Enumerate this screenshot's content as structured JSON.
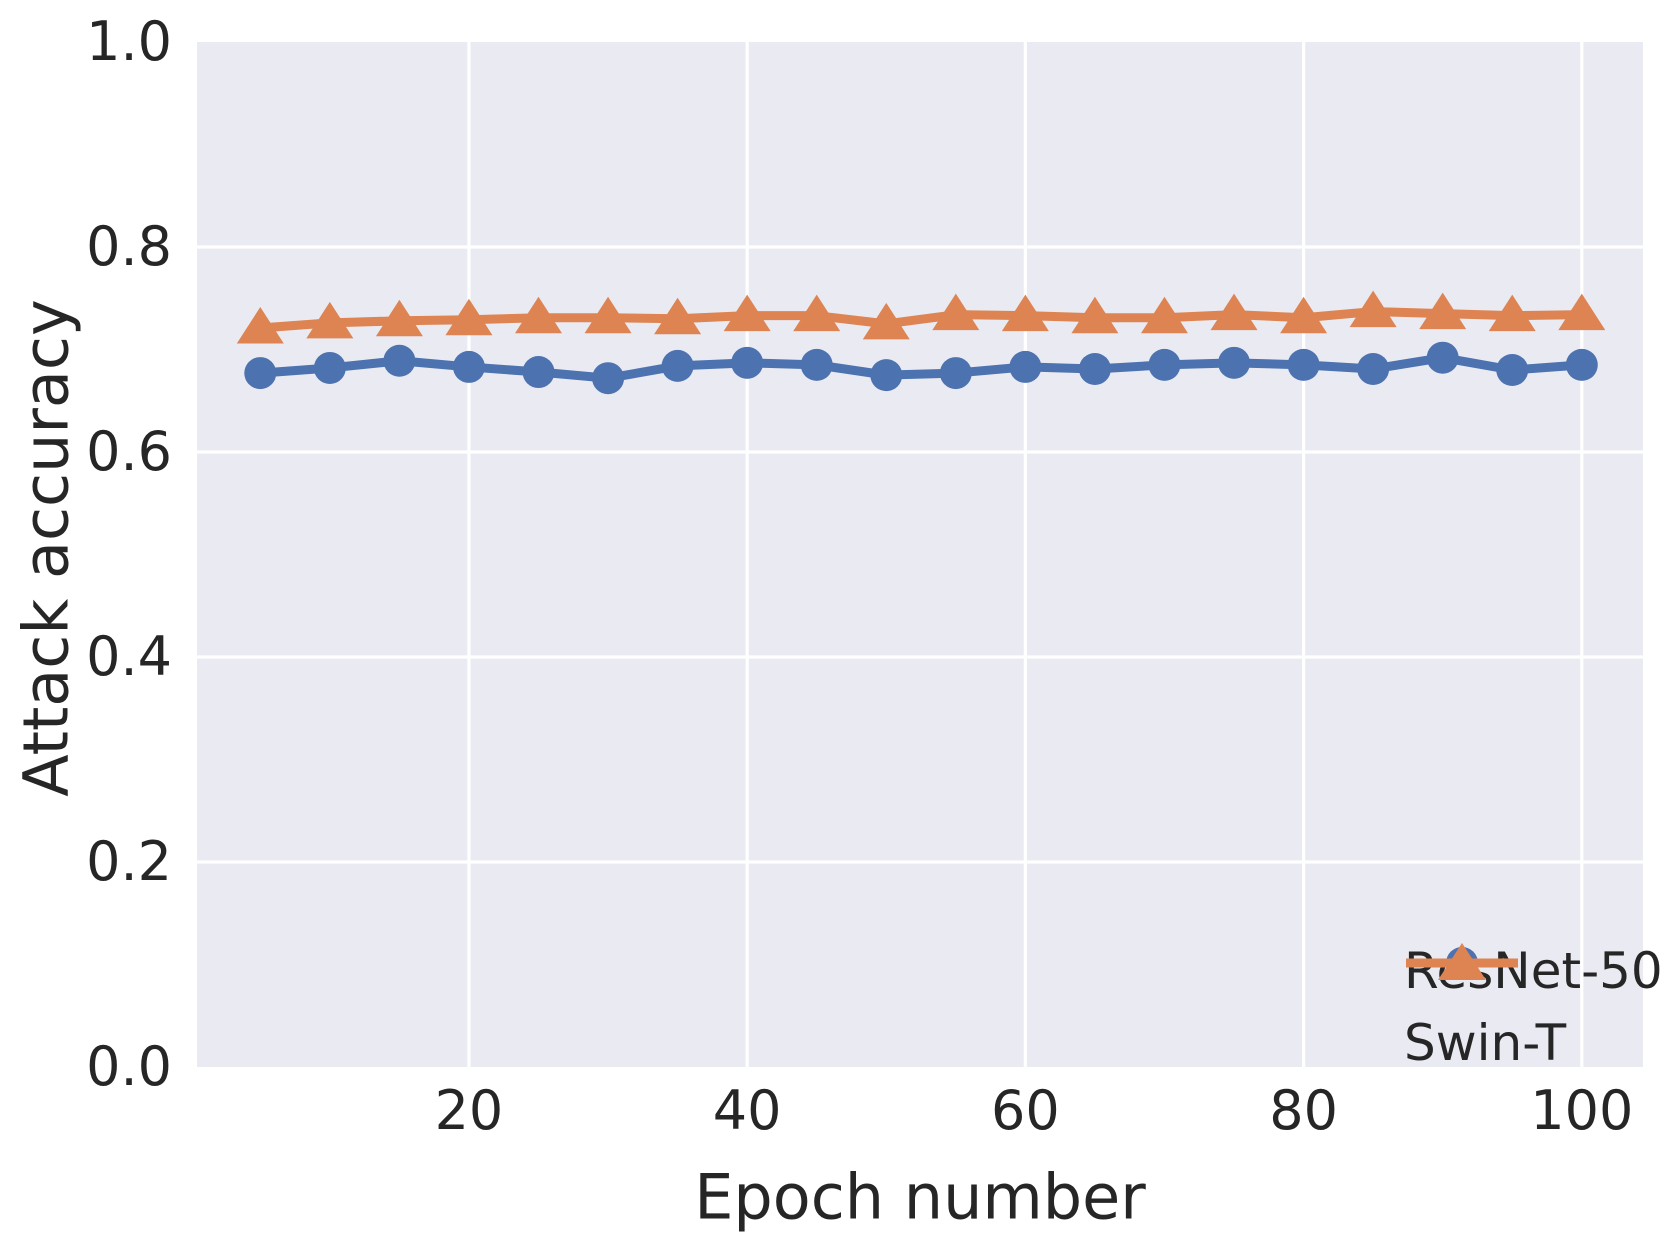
{
  "figure": {
    "background": "#ffffff",
    "plot_background": "#eaeaf2",
    "grid_color": "#ffffff",
    "text_color": "#262626"
  },
  "chart_data": {
    "type": "line",
    "title": "",
    "xlabel": "Epoch number",
    "ylabel": "Attack accuracy",
    "xlim": [
      0.45,
      104.4
    ],
    "ylim": [
      0.0,
      1.0
    ],
    "x_ticks": [
      20,
      40,
      60,
      80,
      100
    ],
    "y_ticks": [
      "0.0",
      "0.2",
      "0.4",
      "0.6",
      "0.8",
      "1.0"
    ],
    "grid": true,
    "legend_position": "lower right",
    "x": [
      5,
      10,
      15,
      20,
      25,
      30,
      35,
      40,
      45,
      50,
      55,
      60,
      65,
      70,
      75,
      80,
      85,
      90,
      95,
      100
    ],
    "series": [
      {
        "name": "ResNet-50",
        "color": "#4c72b0",
        "marker": "circle",
        "values": [
          0.677,
          0.682,
          0.689,
          0.683,
          0.678,
          0.672,
          0.684,
          0.687,
          0.685,
          0.675,
          0.677,
          0.683,
          0.681,
          0.685,
          0.687,
          0.685,
          0.681,
          0.692,
          0.68,
          0.685
        ]
      },
      {
        "name": "Swin-T",
        "color": "#dd8452",
        "marker": "triangle",
        "values": [
          0.721,
          0.726,
          0.728,
          0.729,
          0.731,
          0.731,
          0.73,
          0.733,
          0.733,
          0.725,
          0.734,
          0.733,
          0.731,
          0.731,
          0.734,
          0.731,
          0.737,
          0.735,
          0.733,
          0.734
        ]
      }
    ]
  }
}
